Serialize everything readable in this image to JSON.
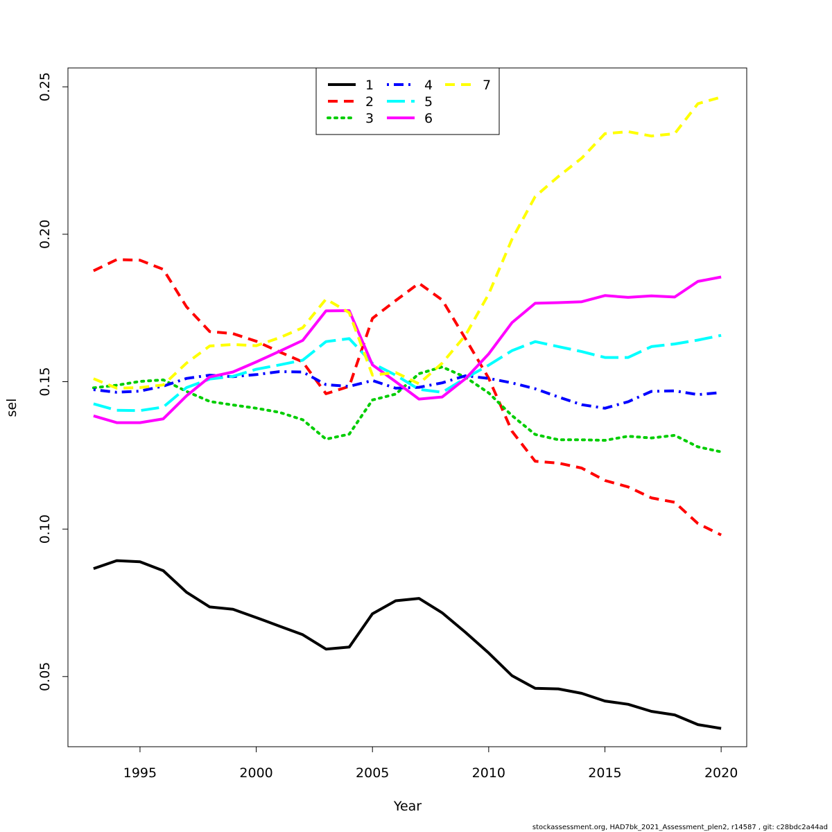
{
  "chart_data": {
    "type": "line",
    "xlabel": "Year",
    "ylabel": "sel",
    "xlim": [
      1991.9,
      2021.1
    ],
    "ylim": [
      0.0262,
      0.2564
    ],
    "xticks": [
      1995,
      2000,
      2005,
      2010,
      2015,
      2020
    ],
    "yticks": [
      0.05,
      0.1,
      0.15,
      0.2,
      0.25
    ],
    "ytick_labels": [
      "0.05",
      "0.10",
      "0.15",
      "0.20",
      "0.25"
    ],
    "grid": false,
    "legend_position": "top",
    "x": [
      1993,
      1994,
      1995,
      1996,
      1997,
      1998,
      1999,
      2000,
      2001,
      2002,
      2003,
      2004,
      2005,
      2006,
      2007,
      2008,
      2009,
      2010,
      2011,
      2012,
      2013,
      2014,
      2015,
      2016,
      2017,
      2018,
      2019,
      2020
    ],
    "series": [
      {
        "name": "1",
        "color": "#000000",
        "dash": "solid",
        "values": [
          0.0866,
          0.0893,
          0.0889,
          0.0859,
          0.0786,
          0.0736,
          0.0728,
          0.07,
          0.0671,
          0.0642,
          0.0593,
          0.06,
          0.0713,
          0.0757,
          0.0765,
          0.0716,
          0.065,
          0.058,
          0.0503,
          0.046,
          0.0458,
          0.0443,
          0.0417,
          0.0406,
          0.0382,
          0.037,
          0.0337,
          0.0324
        ]
      },
      {
        "name": "2",
        "color": "#ff0000",
        "dash": "dashed",
        "values": [
          0.1876,
          0.1914,
          0.1912,
          0.1881,
          0.1754,
          0.167,
          0.1663,
          0.1637,
          0.1601,
          0.1567,
          0.1459,
          0.1484,
          0.1715,
          0.1775,
          0.1834,
          0.1777,
          0.1646,
          0.1512,
          0.1332,
          0.123,
          0.1224,
          0.1207,
          0.1165,
          0.1143,
          0.1106,
          0.1091,
          0.1019,
          0.098
        ]
      },
      {
        "name": "3",
        "color": "#00cd00",
        "dash": "dotted",
        "values": [
          0.1479,
          0.1488,
          0.1501,
          0.1506,
          0.1467,
          0.1433,
          0.1421,
          0.141,
          0.1396,
          0.1371,
          0.1305,
          0.1322,
          0.1438,
          0.1458,
          0.1527,
          0.155,
          0.1515,
          0.1462,
          0.1385,
          0.1321,
          0.1303,
          0.1303,
          0.1301,
          0.1315,
          0.1309,
          0.1318,
          0.1279,
          0.1262
        ]
      },
      {
        "name": "4",
        "color": "#0000ff",
        "dash": "dotdash",
        "values": [
          0.1473,
          0.1464,
          0.1468,
          0.1485,
          0.1511,
          0.1522,
          0.1517,
          0.1524,
          0.1534,
          0.1533,
          0.149,
          0.1484,
          0.1504,
          0.1478,
          0.1481,
          0.1496,
          0.152,
          0.1511,
          0.1496,
          0.1476,
          0.1448,
          0.1422,
          0.141,
          0.1432,
          0.1467,
          0.1469,
          0.1456,
          0.1463
        ]
      },
      {
        "name": "5",
        "color": "#00ffff",
        "dash": "longdash",
        "values": [
          0.1425,
          0.1403,
          0.1402,
          0.1414,
          0.148,
          0.1509,
          0.1518,
          0.1542,
          0.1557,
          0.1573,
          0.1636,
          0.1646,
          0.1562,
          0.1522,
          0.1474,
          0.1464,
          0.1512,
          0.1556,
          0.1605,
          0.1636,
          0.1619,
          0.1602,
          0.1582,
          0.1582,
          0.1619,
          0.1628,
          0.1641,
          0.1657
        ]
      },
      {
        "name": "6",
        "color": "#ff00ff",
        "dash": "solid",
        "values": [
          0.1384,
          0.1361,
          0.1361,
          0.1374,
          0.1452,
          0.1516,
          0.1533,
          0.1567,
          0.1603,
          0.164,
          0.174,
          0.1741,
          0.1557,
          0.15,
          0.1441,
          0.1448,
          0.151,
          0.1594,
          0.17,
          0.1766,
          0.1768,
          0.1771,
          0.1792,
          0.1786,
          0.1791,
          0.1787,
          0.184,
          0.1855
        ]
      },
      {
        "name": "7",
        "color": "#ffff00",
        "dash": "dashed",
        "values": [
          0.151,
          0.1478,
          0.148,
          0.1489,
          0.1563,
          0.1621,
          0.1626,
          0.1622,
          0.1649,
          0.1683,
          0.178,
          0.1734,
          0.1522,
          0.1531,
          0.1493,
          0.1563,
          0.1657,
          0.1797,
          0.1983,
          0.2128,
          0.2196,
          0.2258,
          0.2341,
          0.2348,
          0.2333,
          0.2341,
          0.2443,
          0.2465
        ]
      }
    ]
  },
  "footer": "stockassessment.org, HAD7bk_2021_Assessment_plen2, r14587 , git: c28bdc2a44ad"
}
